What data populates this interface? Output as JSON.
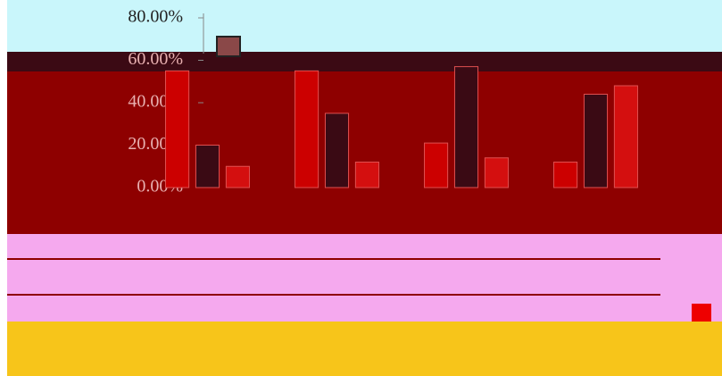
{
  "chart_data": {
    "type": "bar",
    "categories": [
      null,
      null,
      null,
      null
    ],
    "series": [
      {
        "color": "#cc0000",
        "values": [
          55,
          55,
          21,
          12
        ]
      },
      {
        "color": "#3a0a14",
        "values": [
          20,
          35,
          57,
          44
        ]
      },
      {
        "color": "#d40f0f",
        "values": [
          10,
          12,
          14,
          48
        ]
      }
    ],
    "ylim": [
      0,
      80
    ],
    "yticks": [
      {
        "value": 0,
        "label": "0.00%"
      },
      {
        "value": 20,
        "label": "20.00%"
      },
      {
        "value": 40,
        "label": "40.00%"
      },
      {
        "value": 60,
        "label": "60.00%"
      },
      {
        "value": 80,
        "label": "80.00%"
      }
    ]
  }
}
